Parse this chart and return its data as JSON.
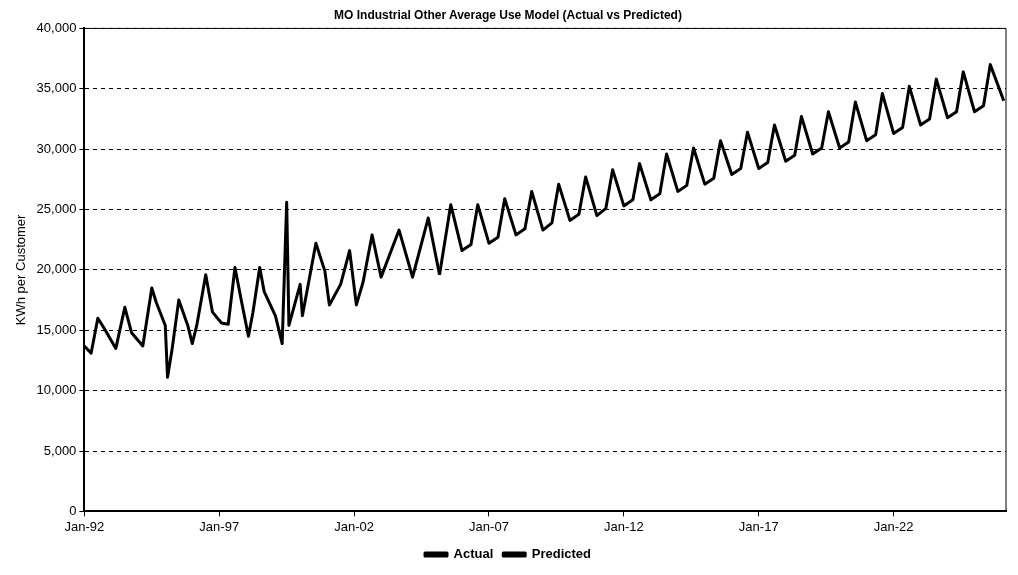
{
  "chart_data": {
    "type": "line",
    "title": "MO Industrial Other Average Use Model (Actual vs Predicted)",
    "ylabel": "KWh per Customer",
    "xlim": [
      "1992-01",
      "2026-03"
    ],
    "xticks": [
      {
        "value": "1992-01",
        "label": "Jan-92"
      },
      {
        "value": "1997-01",
        "label": "Jan-97"
      },
      {
        "value": "2002-01",
        "label": "Jan-02"
      },
      {
        "value": "2007-01",
        "label": "Jan-07"
      },
      {
        "value": "2012-01",
        "label": "Jan-12"
      },
      {
        "value": "2017-01",
        "label": "Jan-17"
      },
      {
        "value": "2022-01",
        "label": "Jan-22"
      }
    ],
    "ylim": [
      0,
      40000
    ],
    "yticks": [
      {
        "value": 0,
        "label": "0"
      },
      {
        "value": 5000,
        "label": "5,000"
      },
      {
        "value": 10000,
        "label": "10,000"
      },
      {
        "value": 15000,
        "label": "15,000"
      },
      {
        "value": 20000,
        "label": "20,000"
      },
      {
        "value": 25000,
        "label": "25,000"
      },
      {
        "value": 30000,
        "label": "30,000"
      },
      {
        "value": 35000,
        "label": "35,000"
      },
      {
        "value": 40000,
        "label": "40,000"
      }
    ],
    "grid": "y",
    "legend": "bottom",
    "marker": "none",
    "line_style": "solid",
    "series": [
      {
        "name": "Actual",
        "color": "#000000",
        "x": [
          "1992-01",
          "1992-04",
          "1992-07",
          "1992-10",
          "1993-03",
          "1993-07",
          "1993-10",
          "1994-03",
          "1994-07",
          "1994-09",
          "1995-01",
          "1995-02",
          "1995-04",
          "1995-07",
          "1995-11",
          "1996-01",
          "1996-03",
          "1996-07",
          "1996-10",
          "1997-02",
          "1997-05",
          "1997-08",
          "1997-11",
          "1998-02",
          "1998-04",
          "1998-07",
          "1998-09",
          "1999-02",
          "1999-05",
          "1999-07",
          "1999-08",
          "2000-01",
          "2000-02",
          "2000-06",
          "2000-08",
          "2000-12",
          "2001-02",
          "2001-07",
          "2001-11",
          "2002-02",
          "2002-05",
          "2002-09",
          "2003-01",
          "2003-09",
          "2004-03",
          "2004-10",
          "2005-03"
        ],
        "values": [
          13700,
          13100,
          16000,
          15100,
          13500,
          16900,
          14800,
          13700,
          18500,
          17300,
          15400,
          11100,
          13400,
          17500,
          15400,
          13900,
          15400,
          19600,
          16500,
          15600,
          15500,
          20200,
          17300,
          14500,
          16500,
          20200,
          18200,
          16200,
          13900,
          25600,
          15400,
          18800,
          16200,
          20200,
          22200,
          19900,
          17100,
          18800,
          21600,
          17100,
          19000,
          22900,
          19400,
          23300,
          19400,
          24300,
          19600
        ]
      },
      {
        "name": "Predicted",
        "color": "#000000",
        "x": [
          "2005-03",
          "2005-08",
          "2006-01",
          "2006-05",
          "2006-08",
          "2007-01",
          "2007-05",
          "2007-08",
          "2008-01",
          "2008-05",
          "2008-08",
          "2009-01",
          "2009-05",
          "2009-08",
          "2010-01",
          "2010-05",
          "2010-08",
          "2011-01",
          "2011-05",
          "2011-08",
          "2012-01",
          "2012-05",
          "2012-08",
          "2013-01",
          "2013-05",
          "2013-08",
          "2014-01",
          "2014-05",
          "2014-08",
          "2015-01",
          "2015-05",
          "2015-08",
          "2016-01",
          "2016-05",
          "2016-08",
          "2017-01",
          "2017-05",
          "2017-08",
          "2018-01",
          "2018-05",
          "2018-08",
          "2019-01",
          "2019-05",
          "2019-08",
          "2020-01",
          "2020-05",
          "2020-08",
          "2021-01",
          "2021-05",
          "2021-08",
          "2022-01",
          "2022-05",
          "2022-08",
          "2023-01",
          "2023-05",
          "2023-08",
          "2024-01",
          "2024-05",
          "2024-08",
          "2025-01",
          "2025-05",
          "2025-08",
          "2026-02"
        ],
        "values": [
          19600,
          25400,
          21600,
          22100,
          25400,
          22200,
          22700,
          25900,
          22900,
          23400,
          26500,
          23300,
          23900,
          27100,
          24100,
          24600,
          27700,
          24500,
          25100,
          28300,
          25300,
          25800,
          28800,
          25800,
          26300,
          29600,
          26500,
          27000,
          30100,
          27100,
          27600,
          30700,
          27900,
          28400,
          31400,
          28400,
          28900,
          32000,
          29000,
          29500,
          32700,
          29600,
          30100,
          33100,
          30100,
          30600,
          33900,
          30700,
          31200,
          34600,
          31300,
          31800,
          35200,
          32000,
          32500,
          35800,
          32600,
          33100,
          36400,
          33100,
          33600,
          37000,
          34000
        ]
      }
    ]
  }
}
